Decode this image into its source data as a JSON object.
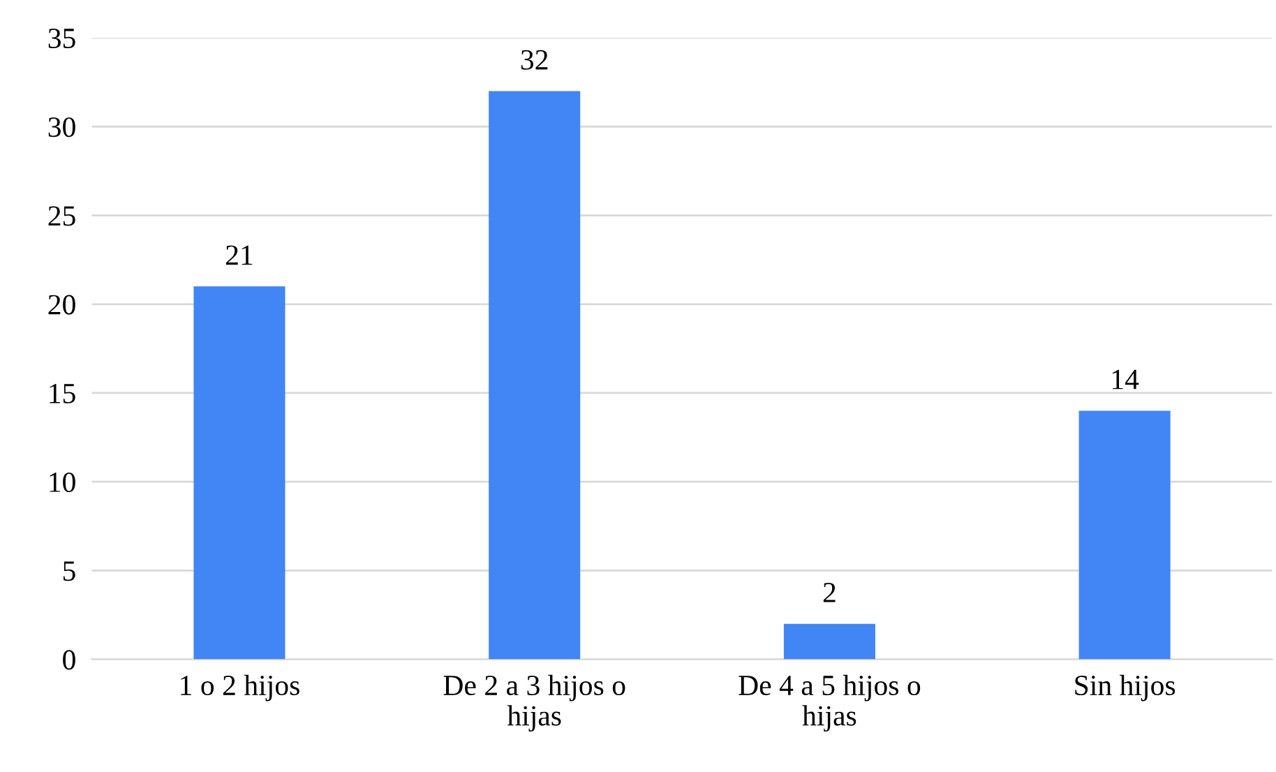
{
  "chart_data": {
    "type": "bar",
    "categories": [
      "1 o 2 hijos",
      "De 2 a 3 hijos o hijas",
      "De 4 a 5 hijos o hijas",
      "Sin hijos"
    ],
    "values": [
      21,
      32,
      2,
      14
    ],
    "color": "#4285f4",
    "ylim": [
      0,
      35
    ],
    "yticks": [
      0,
      5,
      10,
      15,
      20,
      25,
      30,
      35
    ],
    "grid": "y",
    "data_labels": true
  }
}
